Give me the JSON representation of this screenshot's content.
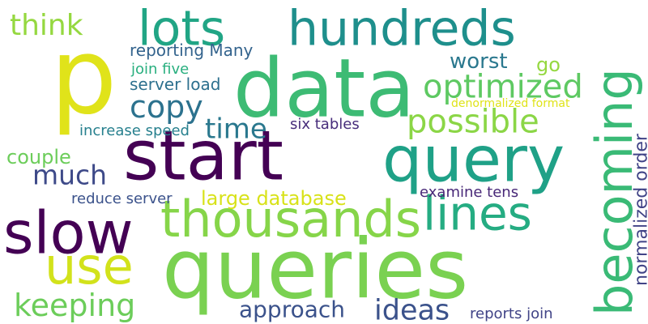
{
  "words": [
    {
      "text": "p",
      "color": "#e0e31a",
      "rotated": false
    },
    {
      "text": "start",
      "color": "#440154",
      "rotated": false
    },
    {
      "text": "queries",
      "color": "#7ad151",
      "rotated": false
    },
    {
      "text": "data",
      "color": "#3dbb74",
      "rotated": false
    },
    {
      "text": "hundreds",
      "color": "#1e8f8c",
      "rotated": false
    },
    {
      "text": "query",
      "color": "#1fa187",
      "rotated": false
    },
    {
      "text": "thousands",
      "color": "#86d549",
      "rotated": false
    },
    {
      "text": "slow",
      "color": "#440154",
      "rotated": false
    },
    {
      "text": "lines",
      "color": "#25ac82",
      "rotated": false
    },
    {
      "text": "becoming",
      "color": "#3aba76",
      "rotated": true
    },
    {
      "text": "lots",
      "color": "#21a585",
      "rotated": false
    },
    {
      "text": "use",
      "color": "#d2e21b",
      "rotated": false
    },
    {
      "text": "optimized",
      "color": "#5ec962",
      "rotated": false
    },
    {
      "text": "possible",
      "color": "#8bd646",
      "rotated": false
    },
    {
      "text": "keeping",
      "color": "#6ccd5a",
      "rotated": false
    },
    {
      "text": "ideas",
      "color": "#3b528b",
      "rotated": false
    },
    {
      "text": "copy",
      "color": "#2c728e",
      "rotated": false
    },
    {
      "text": "time",
      "color": "#2a788e",
      "rotated": false
    },
    {
      "text": "much",
      "color": "#3e4a89",
      "rotated": false
    },
    {
      "text": "think",
      "color": "#95d840",
      "rotated": false
    },
    {
      "text": "approach",
      "color": "#3b528b",
      "rotated": false
    },
    {
      "text": "couple",
      "color": "#6ccd5a",
      "rotated": false
    },
    {
      "text": "worst",
      "color": "#2a788e",
      "rotated": false
    },
    {
      "text": "go",
      "color": "#95d840",
      "rotated": false
    },
    {
      "text": "large database",
      "color": "#d8e219",
      "rotated": false
    },
    {
      "text": "normalized order",
      "color": "#414487",
      "rotated": true
    },
    {
      "text": "reporting Many",
      "color": "#33638d",
      "rotated": false
    },
    {
      "text": "join five",
      "color": "#29af7f",
      "rotated": false
    },
    {
      "text": "server load",
      "color": "#2d708e",
      "rotated": false
    },
    {
      "text": "six tables",
      "color": "#472d7b",
      "rotated": false
    },
    {
      "text": "increase speed",
      "color": "#27808e",
      "rotated": false
    },
    {
      "text": "reduce server",
      "color": "#3b528b",
      "rotated": false
    },
    {
      "text": "examine tens",
      "color": "#482878",
      "rotated": false
    },
    {
      "text": "reports join",
      "color": "#414487",
      "rotated": false
    },
    {
      "text": "denormalized format",
      "color": "#dfe318",
      "rotated": false
    }
  ]
}
